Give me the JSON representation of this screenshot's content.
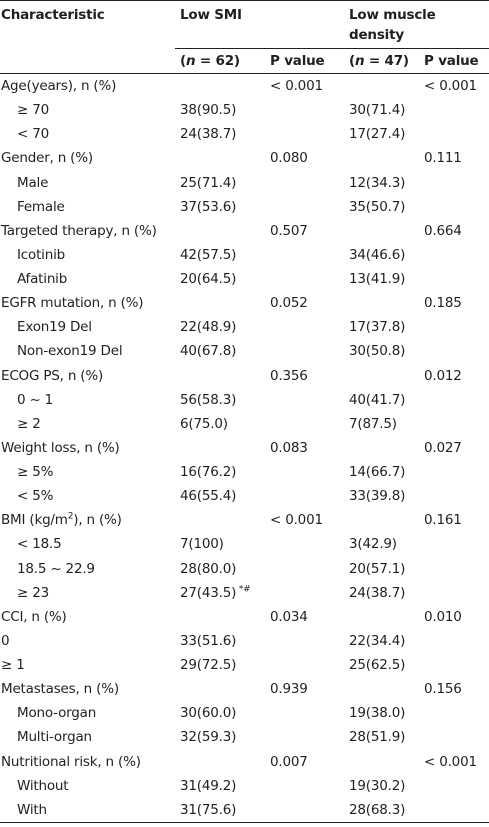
{
  "header": {
    "characteristic": "Characteristic",
    "low_smi": "Low SMI",
    "low_muscle_density": "Low muscle density",
    "n_smi_prefix": "(",
    "n_smi_var": "n",
    "n_smi_rest": " = 62)",
    "n_md_prefix": "(",
    "n_md_var": "n",
    "n_md_rest": " = 47)",
    "p_value_1": "P value",
    "p_value_2": "P value"
  },
  "rows": [
    {
      "label": "Age(years), n (%)",
      "sub": false,
      "smi": "",
      "p1": "< 0.001",
      "md": "",
      "p2": "< 0.001"
    },
    {
      "label": "≥ 70",
      "sub": true,
      "smi": "38(90.5)",
      "p1": "",
      "md": "30(71.4)",
      "p2": ""
    },
    {
      "label": "< 70",
      "sub": true,
      "smi": "24(38.7)",
      "p1": "",
      "md": "17(27.4)",
      "p2": ""
    },
    {
      "label": "Gender, n (%)",
      "sub": false,
      "smi": "",
      "p1": "0.080",
      "md": "",
      "p2": "0.111"
    },
    {
      "label": "Male",
      "sub": true,
      "smi": "25(71.4)",
      "p1": "",
      "md": "12(34.3)",
      "p2": ""
    },
    {
      "label": "Female",
      "sub": true,
      "smi": "37(53.6)",
      "p1": "",
      "md": "35(50.7)",
      "p2": ""
    },
    {
      "label": "Targeted therapy, n (%)",
      "sub": false,
      "smi": "",
      "p1": "0.507",
      "md": "",
      "p2": "0.664"
    },
    {
      "label": "Icotinib",
      "sub": true,
      "smi": "42(57.5)",
      "p1": "",
      "md": "34(46.6)",
      "p2": ""
    },
    {
      "label": "Afatinib",
      "sub": true,
      "smi": "20(64.5)",
      "p1": "",
      "md": "13(41.9)",
      "p2": ""
    },
    {
      "label": "EGFR mutation, n (%)",
      "sub": false,
      "smi": "",
      "p1": "0.052",
      "md": "",
      "p2": "0.185"
    },
    {
      "label": "Exon19 Del",
      "sub": true,
      "smi": "22(48.9)",
      "p1": "",
      "md": "17(37.8)",
      "p2": ""
    },
    {
      "label": "Non-exon19 Del",
      "sub": true,
      "smi": "40(67.8)",
      "p1": "",
      "md": "30(50.8)",
      "p2": ""
    },
    {
      "label": "ECOG PS, n (%)",
      "sub": false,
      "smi": "",
      "p1": "0.356",
      "md": "",
      "p2": "0.012"
    },
    {
      "label": "0 ~ 1",
      "sub": true,
      "smi": "56(58.3)",
      "p1": "",
      "md": "40(41.7)",
      "p2": ""
    },
    {
      "label": "≥ 2",
      "sub": true,
      "smi": "6(75.0)",
      "p1": "",
      "md": "7(87.5)",
      "p2": ""
    },
    {
      "label": "Weight loss, n (%)",
      "sub": false,
      "smi": "",
      "p1": "0.083",
      "md": "",
      "p2": "0.027"
    },
    {
      "label": "≥ 5%",
      "sub": true,
      "smi": "16(76.2)",
      "p1": "",
      "md": "14(66.7)",
      "p2": ""
    },
    {
      "label": "< 5%",
      "sub": true,
      "smi": "46(55.4)",
      "p1": "",
      "md": "33(39.8)",
      "p2": ""
    },
    {
      "label": "BMI (kg/m",
      "label_sup": "2",
      "label_after": "), n (%)",
      "sub": false,
      "smi": "",
      "p1": "< 0.001",
      "md": "",
      "p2": "0.161"
    },
    {
      "label": "< 18.5",
      "sub": true,
      "smi": "7(100)",
      "p1": "",
      "md": "3(42.9)",
      "p2": ""
    },
    {
      "label": "18.5 ~ 22.9",
      "sub": true,
      "smi": "28(80.0)",
      "p1": "",
      "md": "20(57.1)",
      "p2": ""
    },
    {
      "label": "≥ 23",
      "sub": true,
      "smi": "27(43.5)",
      "smi_sup": " *#",
      "p1": "",
      "md": "24(38.7)",
      "p2": ""
    },
    {
      "label": "CCI, n (%)",
      "sub": false,
      "smi": "",
      "p1": "0.034",
      "md": "",
      "p2": "0.010"
    },
    {
      "label": "0",
      "sub": false,
      "smi": "33(51.6)",
      "p1": "",
      "md": "22(34.4)",
      "p2": ""
    },
    {
      "label": "≥ 1",
      "sub": false,
      "smi": "29(72.5)",
      "p1": "",
      "md": "25(62.5)",
      "p2": ""
    },
    {
      "label": "Metastases, n (%)",
      "sub": false,
      "smi": "",
      "p1": "0.939",
      "md": "",
      "p2": "0.156"
    },
    {
      "label": "Mono-organ",
      "sub": true,
      "smi": "30(60.0)",
      "p1": "",
      "md": "19(38.0)",
      "p2": ""
    },
    {
      "label": "Multi-organ",
      "sub": true,
      "smi": "32(59.3)",
      "p1": "",
      "md": "28(51.9)",
      "p2": ""
    },
    {
      "label": "Nutritional risk, n (%)",
      "sub": false,
      "smi": "",
      "p1": "0.007",
      "md": "",
      "p2": "< 0.001"
    },
    {
      "label": "Without",
      "sub": true,
      "smi": "31(49.2)",
      "p1": "",
      "md": "19(30.2)",
      "p2": ""
    },
    {
      "label": "With",
      "sub": true,
      "smi": "31(75.6)",
      "p1": "",
      "md": "28(68.3)",
      "p2": ""
    }
  ]
}
